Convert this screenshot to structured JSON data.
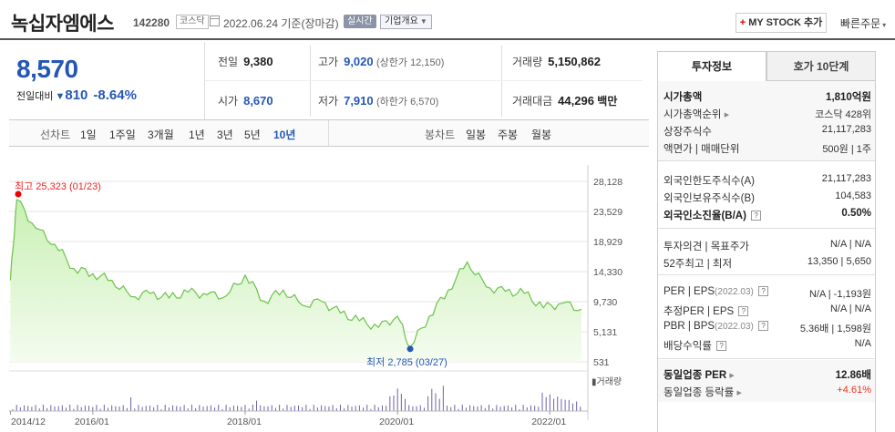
{
  "header": {
    "name": "녹십자엠에스",
    "code": "142280",
    "market": "코스닥",
    "date": "2022.06.24 기준(장마감)",
    "realtime": "실시간",
    "corp_info": "기업개요",
    "mystock": "MY STOCK 추가",
    "mystock_plus": "+",
    "quick_order": "빠른주문"
  },
  "price": {
    "current": "8,570",
    "change_label": "전일대비",
    "change_arrow": "▼",
    "change_value": "810",
    "change_pct": "-8.64%"
  },
  "stats": {
    "prev_label": "전일",
    "prev": "9,380",
    "open_label": "시가",
    "open": "8,670",
    "high_label": "고가",
    "high": "9,020",
    "upper_limit": "(상한가 12,150)",
    "low_label": "저가",
    "low": "7,910",
    "lower_limit": "(하한가 6,570)",
    "volume_label": "거래량",
    "volume": "5,150,862",
    "amount_label": "거래대금",
    "amount": "44,296",
    "amount_unit": "백만"
  },
  "period_bar": {
    "line_label": "선차트",
    "line_periods": [
      "1일",
      "1주일",
      "3개월",
      "1년",
      "3년",
      "5년",
      "10년"
    ],
    "selected": "10년",
    "candle_label": "봉차트",
    "candle_periods": [
      "일봉",
      "주봉",
      "월봉"
    ]
  },
  "chart_data": {
    "type": "area",
    "title": "",
    "y_ticks": [
      "28,128",
      "23,529",
      "18,929",
      "14,330",
      "9,730",
      "5,131",
      "531"
    ],
    "x_ticks": [
      "2014/12",
      "2016/01",
      "2018/01",
      "2020/01",
      "2022/01"
    ],
    "ylim": [
      531,
      28128
    ],
    "high_label": "최고 25,323 (01/23)",
    "low_label": "최저 2,785 (03/27)",
    "volume_label": "거래량",
    "x": [
      "2014/12",
      "2015/01",
      "2015/04",
      "2015/07",
      "2015/10",
      "2016/01",
      "2016/04",
      "2016/07",
      "2016/10",
      "2017/01",
      "2017/04",
      "2017/07",
      "2017/10",
      "2018/01",
      "2018/04",
      "2018/07",
      "2018/10",
      "2019/01",
      "2019/04",
      "2019/07",
      "2019/10",
      "2020/01",
      "2020/03",
      "2020/06",
      "2020/09",
      "2020/12",
      "2021/03",
      "2021/06",
      "2021/09",
      "2021/12",
      "2022/03",
      "2022/06"
    ],
    "values": [
      13000,
      25323,
      21000,
      18500,
      14800,
      14000,
      13000,
      10500,
      11000,
      10300,
      11200,
      10800,
      10600,
      13800,
      9800,
      11500,
      9200,
      9800,
      8000,
      6800,
      5800,
      7500,
      2785,
      7500,
      11500,
      15800,
      12000,
      11300,
      11000,
      8800,
      9500,
      8570
    ]
  },
  "right_panel": {
    "tab_active": "투자정보",
    "tab_other": "호가 10단계",
    "market_cap_label": "시가총액",
    "market_cap": "1,810억원",
    "cap_rank_label": "시가총액순위",
    "cap_rank": "코스닥 428위",
    "shares_label": "상장주식수",
    "shares": "21,117,283",
    "face_label": "액면가 | 매매단위",
    "face": "500원 | 1주",
    "foreign_limit_label": "외국인한도주식수(A)",
    "foreign_limit": "21,117,283",
    "foreign_hold_label": "외국인보유주식수(B)",
    "foreign_hold": "104,583",
    "foreign_ratio_label": "외국인소진율(B/A)",
    "foreign_ratio": "0.50%",
    "opinion_label": "투자의견 | 목표주가",
    "opinion": "N/A | N/A",
    "w52_label": "52주최고 | 최저",
    "w52": "13,350 | 5,650",
    "per_label": "PER | EPS",
    "per_date": "(2022.03)",
    "per": "N/A | -1,193원",
    "est_per_label": "추정PER | EPS",
    "est_per": "N/A | N/A",
    "pbr_label": "PBR | BPS",
    "pbr_date": "(2022.03)",
    "pbr": "5.36배 | 1,598원",
    "div_label": "배당수익률",
    "div": "N/A",
    "ind_per_label": "동일업종 PER",
    "ind_per": "12.86배",
    "ind_rate_label": "동일업종 등락률",
    "ind_rate": "+4.61%"
  }
}
